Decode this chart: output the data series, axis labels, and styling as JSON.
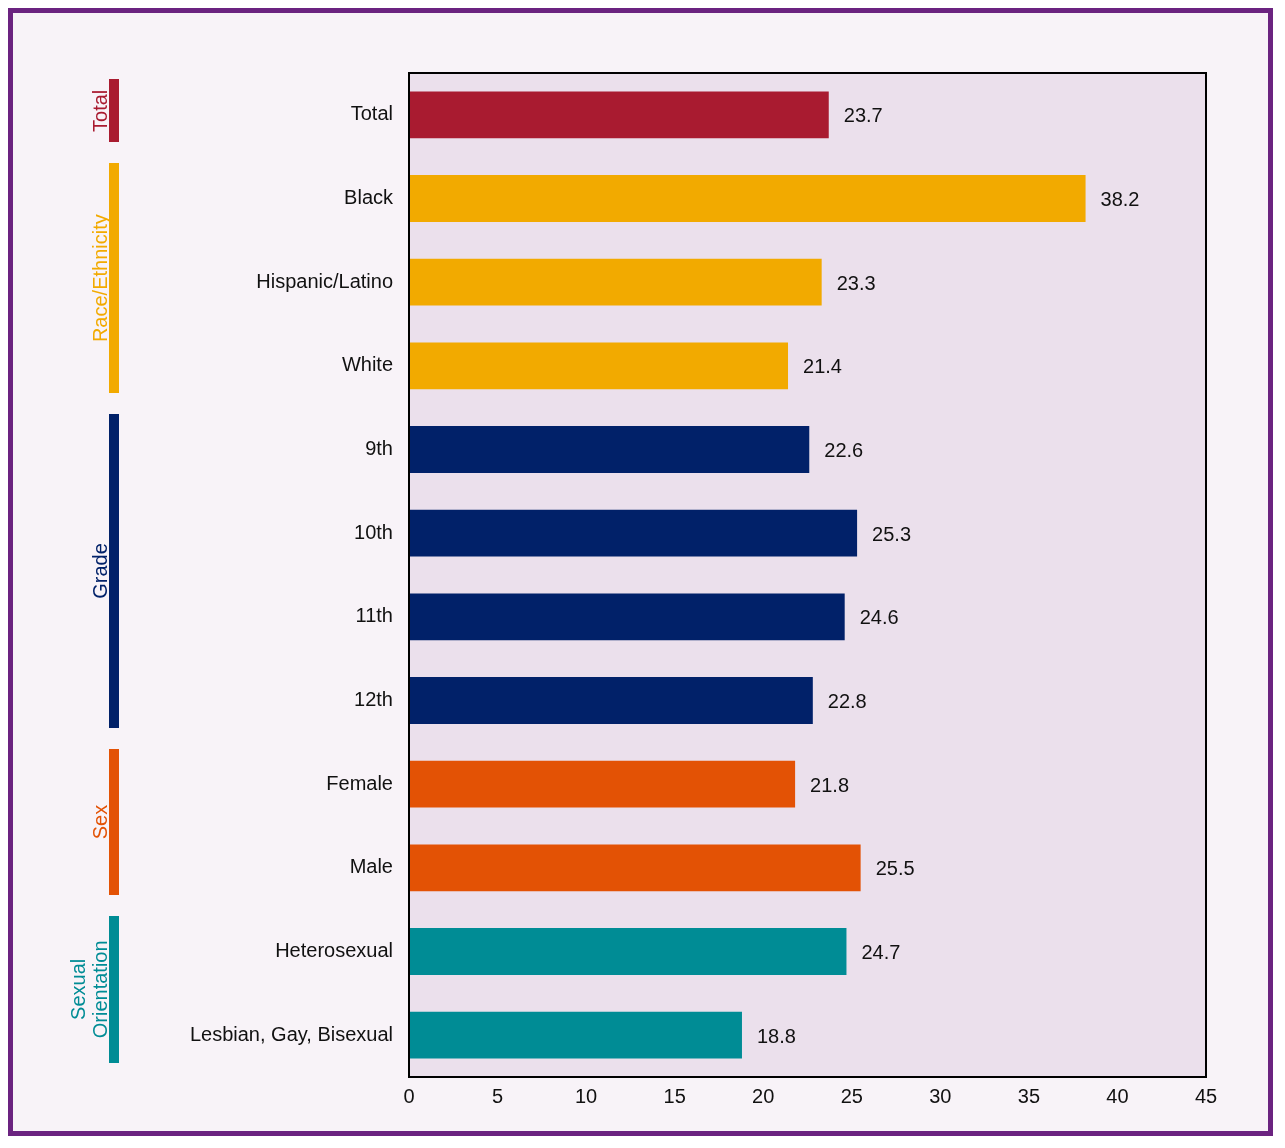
{
  "chart_data": {
    "type": "bar",
    "orientation": "horizontal",
    "categories": [
      "Total",
      "Black",
      "Hispanic/Latino",
      "White",
      "9th",
      "10th",
      "11th",
      "12th",
      "Female",
      "Male",
      "Heterosexual",
      "Lesbian, Gay, Bisexual"
    ],
    "series": [
      {
        "name": "Total",
        "color": "#a91b30",
        "values": [
          23.7,
          null,
          null,
          null,
          null,
          null,
          null,
          null,
          null,
          null,
          null,
          null
        ]
      },
      {
        "name": "Race/Ethnicity",
        "color": "#f2aa00",
        "values": [
          null,
          38.2,
          23.3,
          21.4,
          null,
          null,
          null,
          null,
          null,
          null,
          null,
          null
        ]
      },
      {
        "name": "Grade",
        "color": "#012169",
        "values": [
          null,
          null,
          null,
          null,
          22.6,
          25.3,
          24.6,
          22.8,
          null,
          null,
          null,
          null
        ]
      },
      {
        "name": "Sex",
        "color": "#e35205",
        "values": [
          null,
          null,
          null,
          null,
          null,
          null,
          null,
          null,
          21.8,
          25.5,
          null,
          null
        ]
      },
      {
        "name": "Sexual Orientation",
        "color": "#008c95",
        "values": [
          null,
          null,
          null,
          null,
          null,
          null,
          null,
          null,
          null,
          null,
          24.7,
          18.8
        ]
      }
    ],
    "xlim": [
      0,
      45
    ],
    "xticks": [
      0,
      5,
      10,
      15,
      20,
      25,
      30,
      35,
      40,
      45
    ],
    "legend": "left",
    "data_labels": true
  }
}
